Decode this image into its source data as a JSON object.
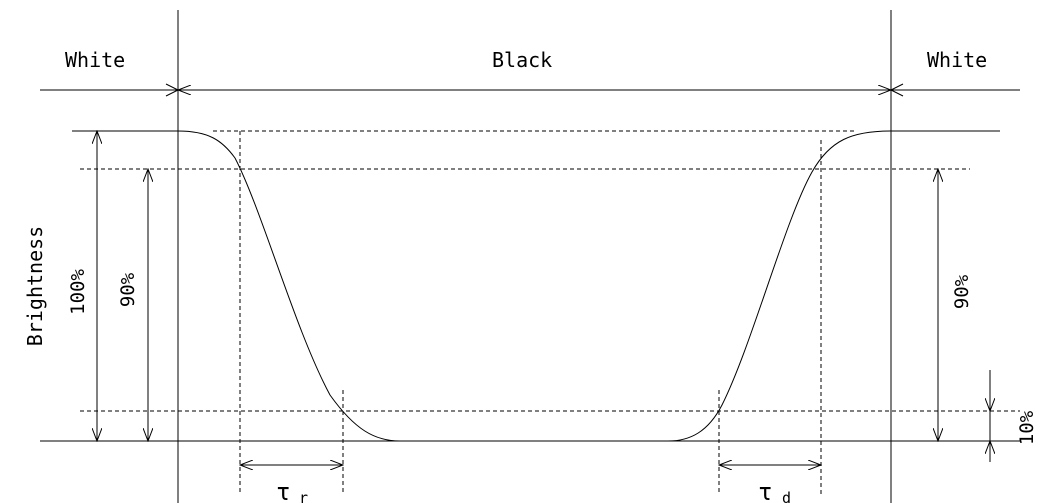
{
  "diagram": {
    "state_left": "White",
    "state_middle": "Black",
    "state_right": "White",
    "y_label": "Brightness",
    "label_100": "100%",
    "label_90_left": "90%",
    "label_90_right": "90%",
    "label_10": "10%",
    "tau_symbol": "τ",
    "tau_r_sub": "r",
    "tau_d_sub": "d"
  },
  "colors": {
    "ink": "#000000",
    "background": "#ffffff"
  }
}
